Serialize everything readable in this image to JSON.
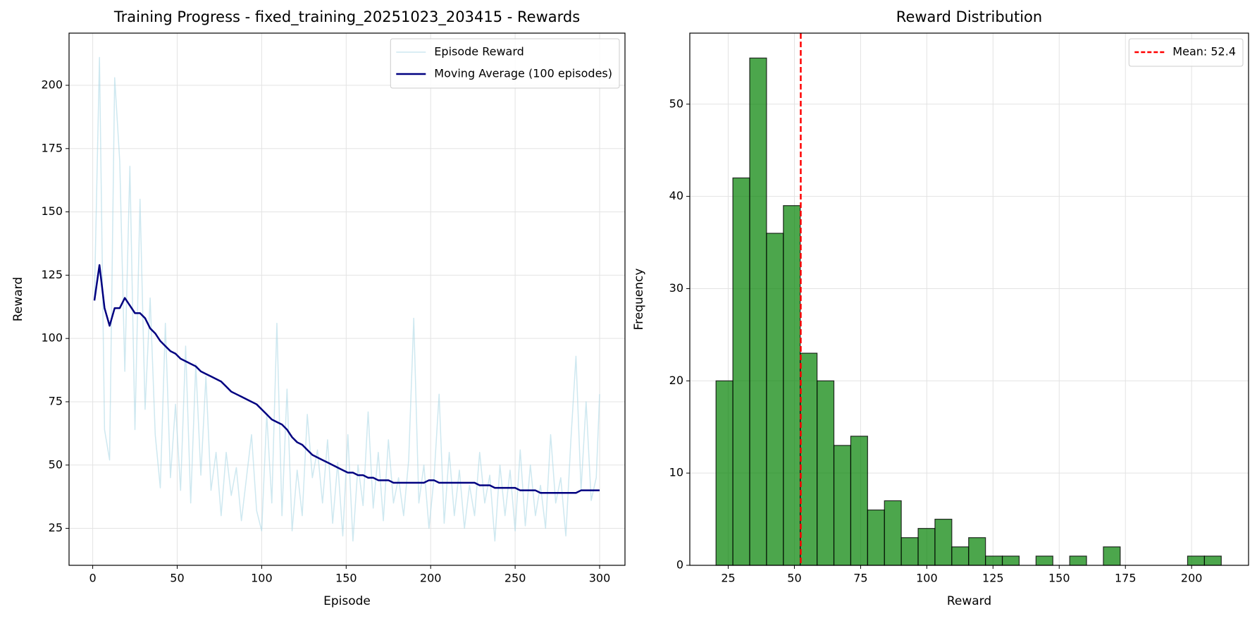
{
  "chart_data": [
    {
      "type": "line",
      "title": "Training Progress - fixed_training_20251023_203415 - Rewards",
      "x_label": "Episode",
      "y_label": "Reward",
      "x": [
        1,
        4,
        7,
        10,
        13,
        16,
        19,
        22,
        25,
        28,
        31,
        34,
        37,
        40,
        43,
        46,
        49,
        52,
        55,
        58,
        61,
        64,
        67,
        70,
        73,
        76,
        79,
        82,
        85,
        88,
        91,
        94,
        97,
        100,
        103,
        106,
        109,
        112,
        115,
        118,
        121,
        124,
        127,
        130,
        133,
        136,
        139,
        142,
        145,
        148,
        151,
        154,
        157,
        160,
        163,
        166,
        169,
        172,
        175,
        178,
        181,
        184,
        187,
        190,
        193,
        196,
        199,
        202,
        205,
        208,
        211,
        214,
        217,
        220,
        223,
        226,
        229,
        232,
        235,
        238,
        241,
        244,
        247,
        250,
        253,
        256,
        259,
        262,
        265,
        268,
        271,
        274,
        277,
        280,
        283,
        286,
        289,
        292,
        295,
        298,
        300
      ],
      "series": [
        {
          "name": "Episode Reward",
          "color": "#add8e6",
          "opacity": 0.6,
          "width": 1.5,
          "values": [
            115,
            211,
            64,
            52,
            203,
            170,
            87,
            168,
            64,
            155,
            72,
            116,
            62,
            41,
            106,
            45,
            74,
            40,
            97,
            35,
            90,
            46,
            85,
            40,
            55,
            30,
            55,
            38,
            49,
            28,
            45,
            62,
            32,
            24,
            70,
            35,
            106,
            30,
            80,
            24,
            48,
            30,
            70,
            45,
            56,
            35,
            60,
            27,
            51,
            22,
            62,
            20,
            50,
            34,
            71,
            33,
            55,
            28,
            60,
            35,
            45,
            30,
            52,
            108,
            35,
            50,
            25,
            45,
            78,
            27,
            55,
            30,
            48,
            25,
            42,
            30,
            55,
            35,
            46,
            20,
            50,
            30,
            48,
            24,
            56,
            26,
            50,
            30,
            42,
            25,
            62,
            35,
            45,
            22,
            60,
            93,
            40,
            75,
            36,
            45,
            78
          ]
        },
        {
          "name": "Moving Average (100 episodes)",
          "color": "#000080",
          "opacity": 1,
          "width": 2.5,
          "values": [
            115,
            129,
            112,
            105,
            112,
            112,
            116,
            113,
            110,
            110,
            108,
            104,
            102,
            99,
            97,
            95,
            94,
            92,
            91,
            90,
            89,
            87,
            86,
            85,
            84,
            83,
            81,
            79,
            78,
            77,
            76,
            75,
            74,
            72,
            70,
            68,
            67,
            66,
            64,
            61,
            59,
            58,
            56,
            54,
            53,
            52,
            51,
            50,
            49,
            48,
            47,
            47,
            46,
            46,
            45,
            45,
            44,
            44,
            44,
            43,
            43,
            43,
            43,
            43,
            43,
            43,
            44,
            44,
            43,
            43,
            43,
            43,
            43,
            43,
            43,
            43,
            42,
            42,
            42,
            41,
            41,
            41,
            41,
            41,
            40,
            40,
            40,
            40,
            39,
            39,
            39,
            39,
            39,
            39,
            39,
            39,
            40,
            40,
            40,
            40,
            40
          ]
        }
      ],
      "xlim": [
        -14,
        315
      ],
      "xticks": [
        0,
        50,
        100,
        150,
        200,
        250,
        300
      ],
      "ylim": [
        10.4,
        220.6
      ],
      "yticks": [
        25,
        50,
        75,
        100,
        125,
        150,
        175,
        200
      ],
      "grid": true,
      "legend": "upper right"
    },
    {
      "type": "histogram",
      "title": "Reward Distribution",
      "x_label": "Reward",
      "y_label": "Frequency",
      "bins": [
        20.4,
        26.76,
        33.12,
        39.48,
        45.84,
        52.2,
        58.56,
        64.92,
        71.28,
        77.64,
        84,
        90.36,
        96.72,
        103.08,
        109.44,
        115.8,
        122.16,
        128.52,
        134.88,
        141.24,
        147.6,
        153.96,
        160.32,
        166.68,
        173.04,
        179.4,
        185.76,
        192.12,
        198.48,
        204.84,
        211.2
      ],
      "values": [
        20,
        42,
        55,
        36,
        39,
        23,
        20,
        13,
        14,
        6,
        7,
        3,
        4,
        5,
        2,
        3,
        1,
        1,
        0,
        1,
        0,
        1,
        0,
        2,
        0,
        0,
        0,
        0,
        1,
        1
      ],
      "color": "#008000",
      "opacity": 0.7,
      "mean_line": {
        "value": 52.4,
        "label": "Mean: 52.4",
        "color": "#ff0000"
      },
      "xlim": [
        10.5,
        221.5
      ],
      "xticks": [
        25,
        50,
        75,
        100,
        125,
        150,
        175,
        200
      ],
      "ylim": [
        0,
        57.7
      ],
      "yticks": [
        0,
        10,
        20,
        30,
        40,
        50
      ],
      "grid": true,
      "legend": "upper right"
    }
  ]
}
